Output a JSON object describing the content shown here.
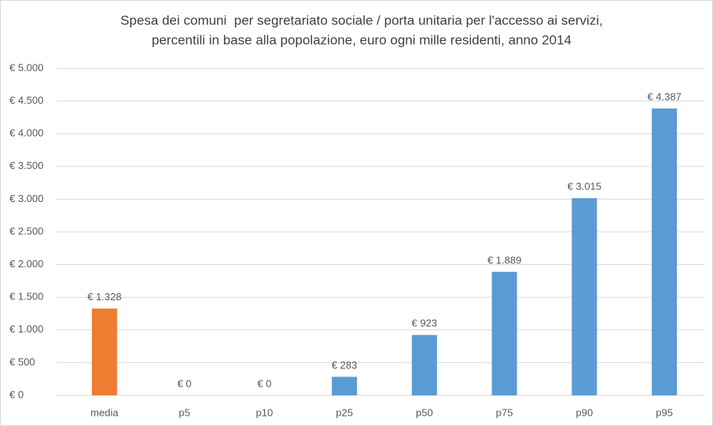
{
  "chart_data": {
    "type": "bar",
    "title": [
      "Spesa dei comuni  per segretariato sociale / porta unitaria per l'accesso ai servizi,",
      "percentili in base alla popolazione, euro ogni mille residenti, anno 2014"
    ],
    "categories": [
      "media",
      "p5",
      "p10",
      "p25",
      "p50",
      "p75",
      "p90",
      "p95"
    ],
    "values": [
      1328,
      0,
      0,
      283,
      923,
      1889,
      3015,
      4387
    ],
    "value_labels": [
      "€ 1.328",
      "€ 0",
      "€ 0",
      "€ 283",
      "€ 923",
      "€ 1.889",
      "€ 3.015",
      "€ 4.387"
    ],
    "colors": [
      "#ed7d31",
      "#5b9bd5",
      "#5b9bd5",
      "#5b9bd5",
      "#5b9bd5",
      "#5b9bd5",
      "#5b9bd5",
      "#5b9bd5"
    ],
    "ylim": [
      0,
      5000
    ],
    "yticks": [
      {
        "value": 0,
        "label": "€ 0"
      },
      {
        "value": 500,
        "label": "€ 500"
      },
      {
        "value": 1000,
        "label": "€ 1.000"
      },
      {
        "value": 1500,
        "label": "€ 1.500"
      },
      {
        "value": 2000,
        "label": "€ 2.000"
      },
      {
        "value": 2500,
        "label": "€ 2.500"
      },
      {
        "value": 3000,
        "label": "€ 3.000"
      },
      {
        "value": 3500,
        "label": "€ 3.500"
      },
      {
        "value": 4000,
        "label": "€ 4.000"
      },
      {
        "value": 4500,
        "label": "€ 4.500"
      },
      {
        "value": 5000,
        "label": "€ 5.000"
      }
    ],
    "grid": true
  }
}
